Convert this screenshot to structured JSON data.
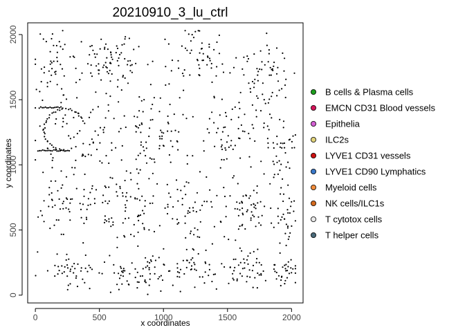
{
  "chart_data": {
    "type": "scatter",
    "title": "20210910_3_lu_ctrl",
    "xlabel": "x coordinates",
    "ylabel": "y coordinates",
    "xlim": [
      -60,
      2090
    ],
    "ylim": [
      -60,
      2090
    ],
    "xticks": [
      0,
      500,
      1000,
      1500,
      2000
    ],
    "yticks": [
      0,
      500,
      1000,
      1500,
      2000
    ],
    "grid": false,
    "legend_position": "right",
    "point_color": "#000000",
    "series": [
      {
        "name": "B cells & Plasma cells",
        "color": "#1e9e1e"
      },
      {
        "name": "EMCN CD31 Blood vessels",
        "color": "#d4145a"
      },
      {
        "name": "Epithelia",
        "color": "#d25fd2"
      },
      {
        "name": "ILC2s",
        "color": "#e0d27a"
      },
      {
        "name": "LYVE1 CD31 vessels",
        "color": "#cc1111"
      },
      {
        "name": "LYVE1 CD90 Lymphatics",
        "color": "#3a78c8"
      },
      {
        "name": "Myeloid cells",
        "color": "#f08c3c"
      },
      {
        "name": "NK cells/ILC1s",
        "color": "#d2691e"
      },
      {
        "name": "T cytotox cells",
        "color": "#e8e8e8"
      },
      {
        "name": "T helper cells",
        "color": "#4a6a7a"
      }
    ],
    "clusters": [
      {
        "cx": 130,
        "cy": 1800,
        "sx": 110,
        "sy": 200,
        "n": 40
      },
      {
        "cx": 560,
        "cy": 1820,
        "sx": 200,
        "sy": 180,
        "n": 70
      },
      {
        "cx": 1250,
        "cy": 1850,
        "sx": 180,
        "sy": 160,
        "n": 50
      },
      {
        "cx": 1800,
        "cy": 1700,
        "sx": 200,
        "sy": 250,
        "n": 60
      },
      {
        "cx": 350,
        "cy": 1200,
        "sx": 250,
        "sy": 300,
        "n": 60
      },
      {
        "cx": 900,
        "cy": 1250,
        "sx": 220,
        "sy": 300,
        "n": 80
      },
      {
        "cx": 1550,
        "cy": 1250,
        "sx": 200,
        "sy": 250,
        "n": 55
      },
      {
        "cx": 1900,
        "cy": 1100,
        "sx": 130,
        "sy": 250,
        "n": 40
      },
      {
        "cx": 200,
        "cy": 700,
        "sx": 170,
        "sy": 220,
        "n": 45
      },
      {
        "cx": 700,
        "cy": 650,
        "sx": 250,
        "sy": 250,
        "n": 75
      },
      {
        "cx": 1250,
        "cy": 650,
        "sx": 200,
        "sy": 250,
        "n": 50
      },
      {
        "cx": 1650,
        "cy": 650,
        "sx": 150,
        "sy": 200,
        "n": 50
      },
      {
        "cx": 1950,
        "cy": 600,
        "sx": 90,
        "sy": 180,
        "n": 35
      },
      {
        "cx": 300,
        "cy": 180,
        "sx": 180,
        "sy": 120,
        "n": 40
      },
      {
        "cx": 850,
        "cy": 180,
        "sx": 200,
        "sy": 120,
        "n": 55
      },
      {
        "cx": 1250,
        "cy": 200,
        "sx": 150,
        "sy": 120,
        "n": 35
      },
      {
        "cx": 1650,
        "cy": 220,
        "sx": 150,
        "sy": 120,
        "n": 45
      },
      {
        "cx": 1950,
        "cy": 200,
        "sx": 100,
        "sy": 120,
        "n": 30
      }
    ],
    "arc": {
      "cx": 230,
      "cy": 1270,
      "r": 160,
      "start_deg": 20,
      "end_deg": 290,
      "n": 45
    },
    "lines": [
      {
        "x1": 20,
        "y1": 1110,
        "x2": 230,
        "y2": 1110,
        "n": 18
      },
      {
        "x1": 30,
        "y1": 1440,
        "x2": 200,
        "y2": 1440,
        "n": 15
      }
    ],
    "background_points": 120
  }
}
